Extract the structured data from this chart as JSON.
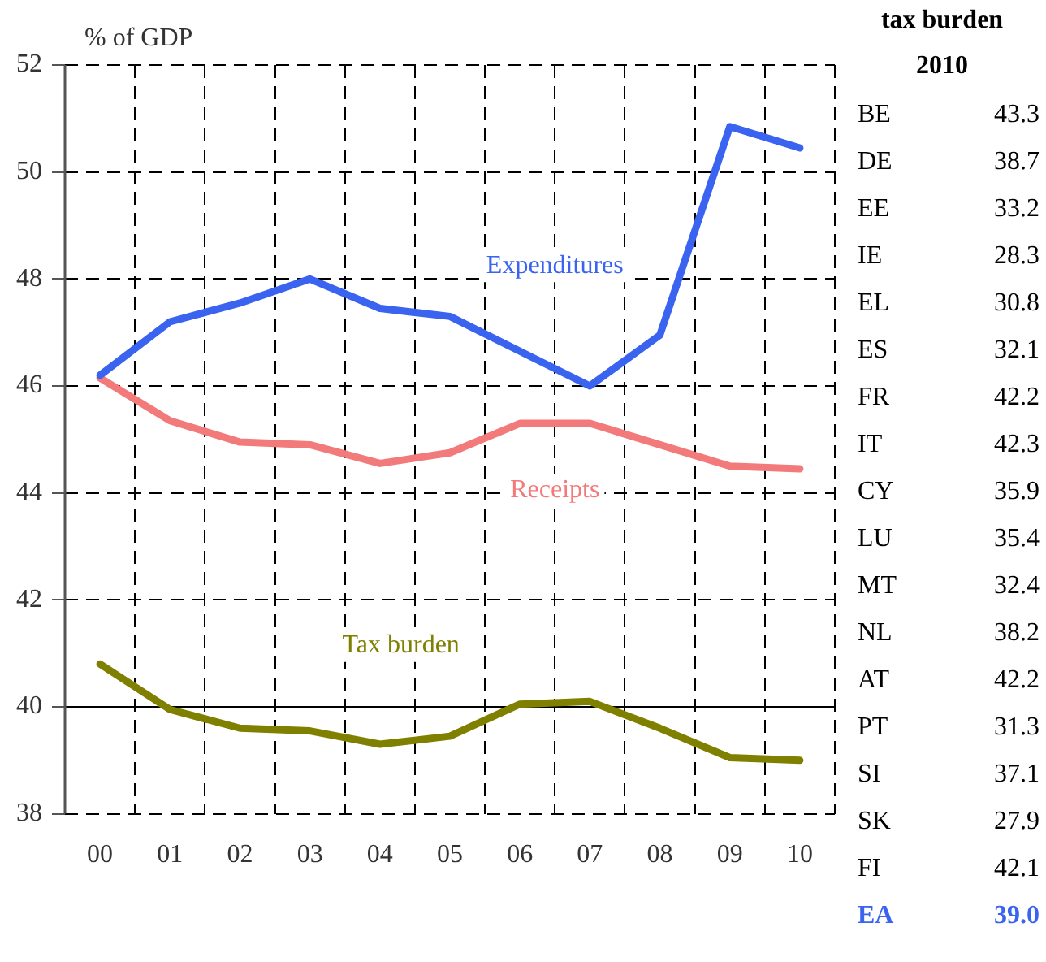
{
  "chart_data": [
    {
      "type": "line",
      "ylabel": "% of GDP",
      "categories": [
        "00",
        "01",
        "02",
        "03",
        "04",
        "05",
        "06",
        "07",
        "08",
        "09",
        "10"
      ],
      "series": [
        {
          "name": "Expenditures",
          "color": "#3a63f0",
          "values": [
            46.2,
            47.2,
            47.55,
            48.0,
            47.45,
            47.3,
            46.65,
            46.0,
            46.95,
            50.85,
            50.45
          ]
        },
        {
          "name": "Receipts",
          "color": "#f27a7a",
          "values": [
            46.15,
            45.35,
            44.95,
            44.9,
            44.55,
            44.75,
            45.3,
            45.3,
            44.9,
            44.5,
            44.45
          ]
        },
        {
          "name": "Tax burden",
          "color": "#7f7f00",
          "values": [
            40.8,
            39.95,
            39.6,
            39.55,
            39.3,
            39.45,
            40.05,
            40.1,
            39.6,
            39.05,
            39.0
          ]
        }
      ],
      "ylim": [
        38,
        52
      ],
      "yticks": [
        38,
        40,
        42,
        44,
        46,
        48,
        50,
        52
      ],
      "grid": true,
      "legend": false,
      "marker": "none",
      "line_style": "solid",
      "ref_lines": [
        {
          "axis": "y",
          "value": 40,
          "color": "#000000"
        }
      ]
    },
    {
      "type": "other",
      "title": "tax burden",
      "subtitle": "2010",
      "categories": [
        "BE",
        "DE",
        "EE",
        "IE",
        "EL",
        "ES",
        "FR",
        "IT",
        "CY",
        "LU",
        "MT",
        "NL",
        "AT",
        "PT",
        "SI",
        "SK",
        "FI",
        "EA"
      ],
      "value_labels": [
        "43.3",
        "38.7",
        "33.2",
        "28.3",
        "30.8",
        "32.1",
        "42.2",
        "42.3",
        "35.9",
        "35.4",
        "32.4",
        "38.2",
        "42.2",
        "31.3",
        "37.1",
        "27.9",
        "42.1",
        "39.0"
      ],
      "colors": [
        "#000000",
        "#000000",
        "#000000",
        "#000000",
        "#000000",
        "#000000",
        "#000000",
        "#000000",
        "#000000",
        "#000000",
        "#000000",
        "#000000",
        "#000000",
        "#000000",
        "#000000",
        "#000000",
        "#000000",
        "#3a63f0"
      ]
    }
  ]
}
